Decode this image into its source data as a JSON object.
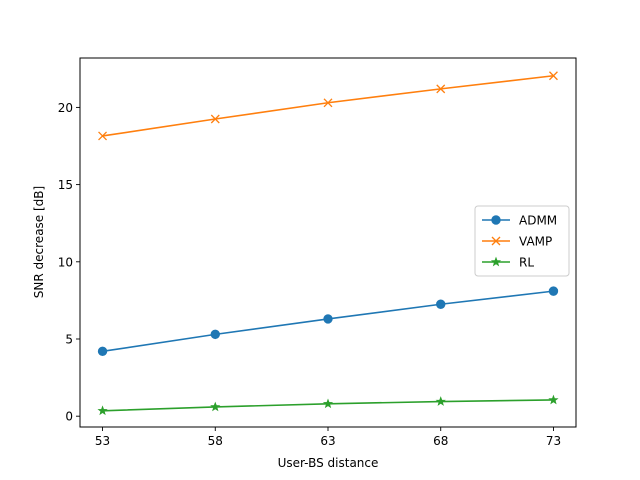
{
  "chart_data": {
    "type": "line",
    "xlabel": "User-BS distance",
    "ylabel": "SNR decrease [dB]",
    "x": [
      53,
      58,
      63,
      68,
      73
    ],
    "xticks": [
      "53",
      "58",
      "63",
      "68",
      "73"
    ],
    "yticks": [
      "0",
      "5",
      "10",
      "15",
      "20"
    ],
    "ytick_values": [
      0,
      5,
      10,
      15,
      20
    ],
    "xlim": [
      52,
      74
    ],
    "ylim": [
      -0.7,
      23.2
    ],
    "grid": false,
    "legend_position": "center-right",
    "series": [
      {
        "name": "ADMM",
        "values": [
          4.2,
          5.3,
          6.3,
          7.25,
          8.1
        ],
        "color": "#1f77b4",
        "marker": "circle"
      },
      {
        "name": "VAMP",
        "values": [
          18.15,
          19.25,
          20.3,
          21.2,
          22.05
        ],
        "color": "#ff7f0e",
        "marker": "x"
      },
      {
        "name": "RL",
        "values": [
          0.35,
          0.6,
          0.8,
          0.95,
          1.05
        ],
        "color": "#2ca02c",
        "marker": "star"
      }
    ]
  }
}
